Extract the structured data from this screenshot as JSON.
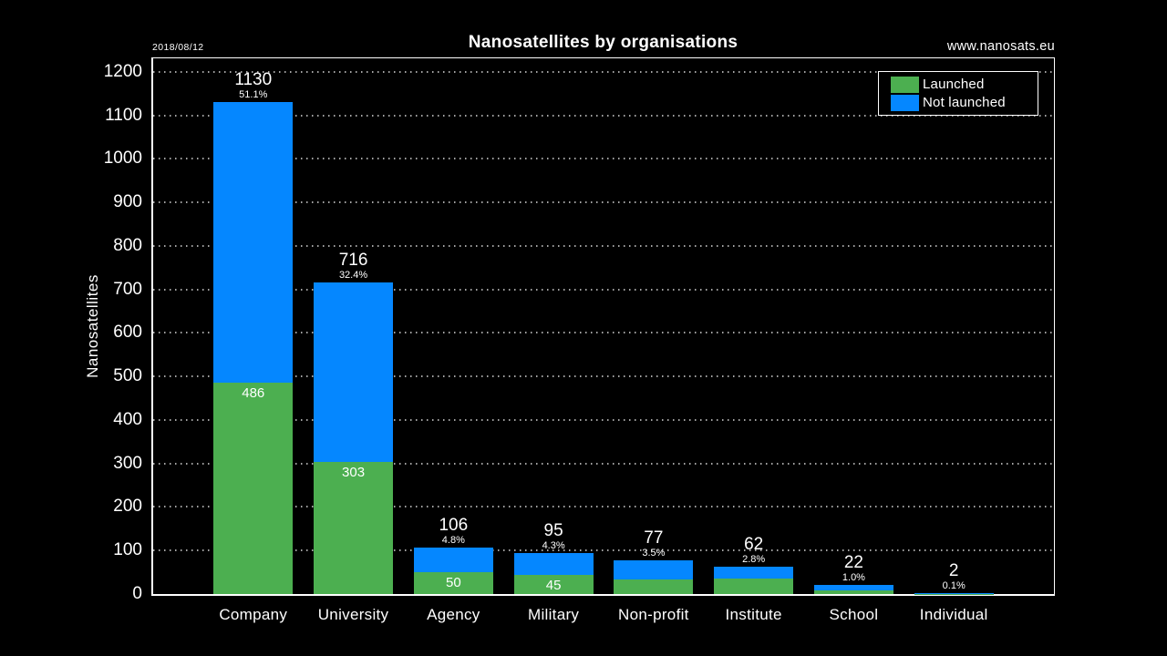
{
  "header": {
    "date": "2018/08/12",
    "website": "www.nanosats.eu"
  },
  "chart_data": {
    "type": "bar",
    "stacked": true,
    "title": "Nanosatellites by organisations",
    "xlabel": "",
    "ylabel": "Nanosatellites",
    "ylim": [
      0,
      1231
    ],
    "ytick_step": 100,
    "ytick_max": 1200,
    "grid": "dotted-horizontal",
    "background_color": "#000000",
    "axis_color": "#ffffff",
    "legend_position": "top-right",
    "categories": [
      "Company",
      "University",
      "Agency",
      "Military",
      "Non-profit",
      "Institute",
      "School",
      "Individual"
    ],
    "series": [
      {
        "name": "Launched",
        "color": "#4CAF50",
        "values": [
          486,
          303,
          50,
          45,
          34,
          36,
          8,
          1
        ],
        "value_labels": [
          "486",
          "303",
          "50",
          "45",
          "",
          "",
          "",
          ""
        ]
      },
      {
        "name": "Not launched",
        "color": "#0587FF",
        "values": [
          644,
          413,
          56,
          50,
          43,
          26,
          14,
          1
        ]
      }
    ],
    "totals": [
      1130,
      716,
      106,
      95,
      77,
      62,
      22,
      2
    ],
    "percentages": [
      "51.1%",
      "32.4%",
      "4.8%",
      "4.3%",
      "3.5%",
      "2.8%",
      "1.0%",
      "0.1%"
    ]
  }
}
